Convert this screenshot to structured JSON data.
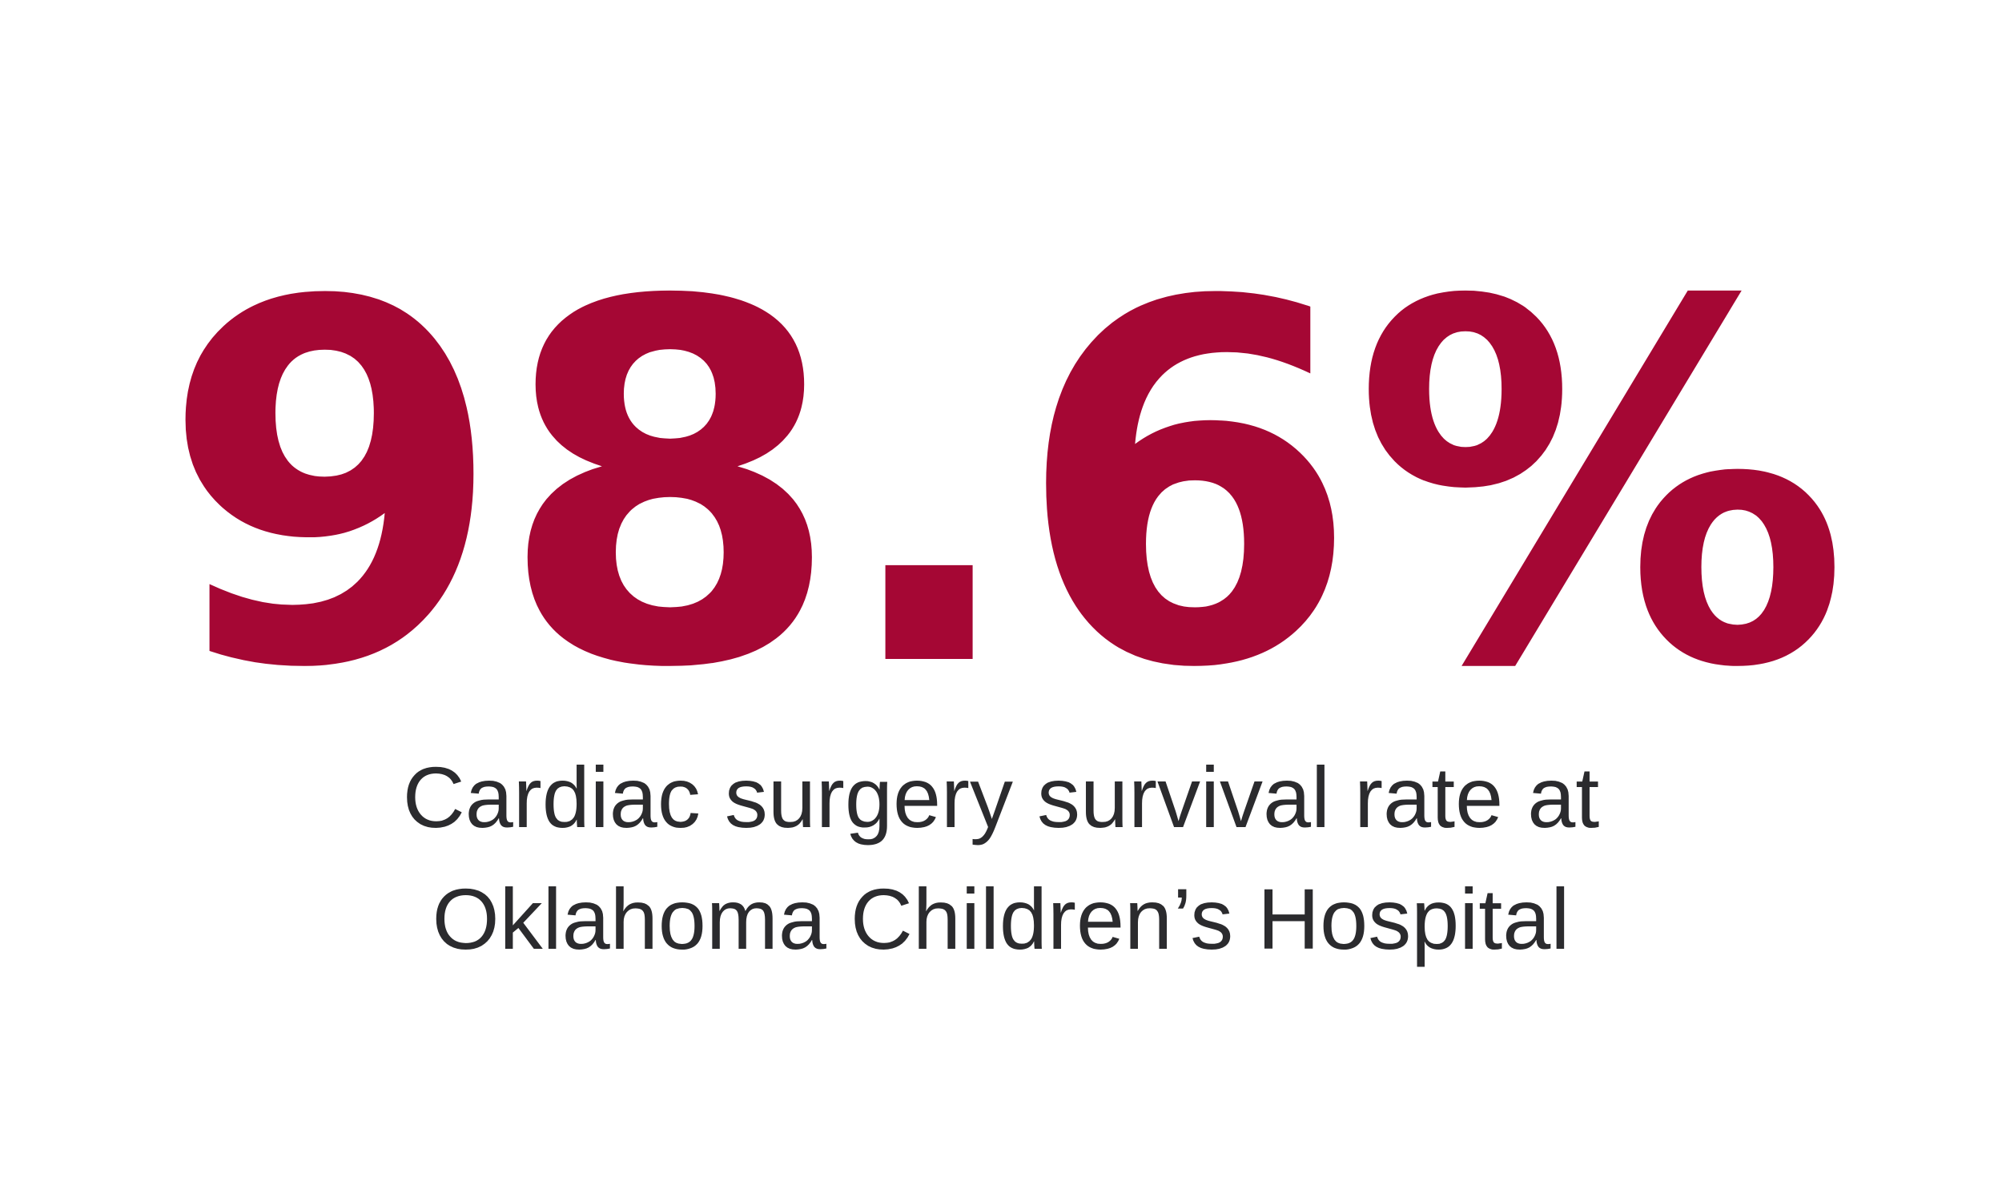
{
  "stat": {
    "value": "98.6%",
    "caption_line1": "Cardiac surgery survival rate at",
    "caption_line2": "Oklahoma Children’s Hospital"
  },
  "colors": {
    "value_color": "#a50734",
    "caption_color": "#2b2b2e",
    "background": "#ffffff"
  }
}
